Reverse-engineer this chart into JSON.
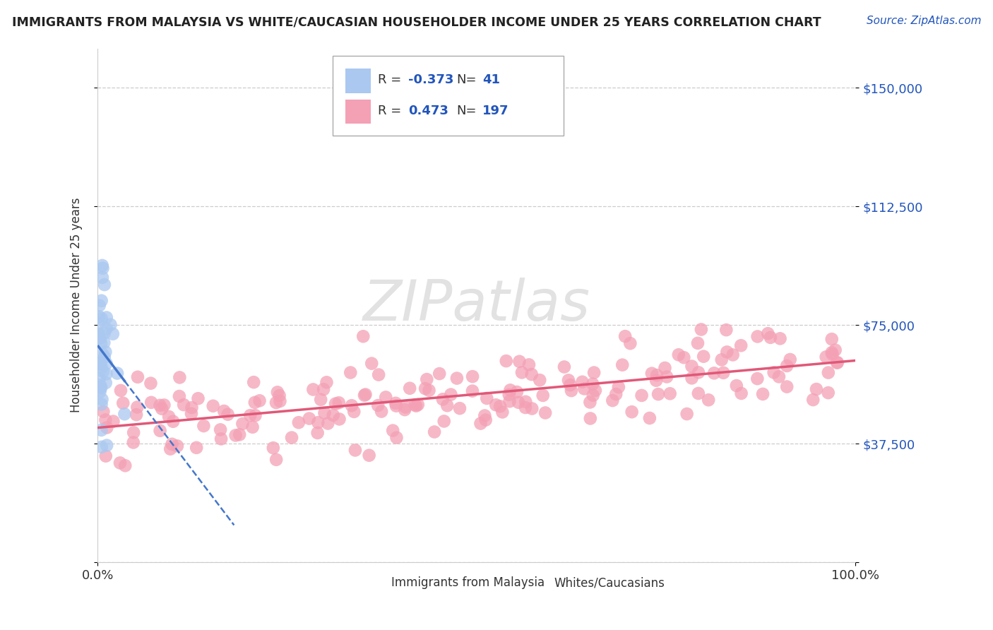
{
  "title": "IMMIGRANTS FROM MALAYSIA VS WHITE/CAUCASIAN HOUSEHOLDER INCOME UNDER 25 YEARS CORRELATION CHART",
  "source": "Source: ZipAtlas.com",
  "ylabel": "Householder Income Under 25 years",
  "xlim": [
    0,
    1.0
  ],
  "ylim": [
    0,
    162500
  ],
  "yticks": [
    0,
    37500,
    75000,
    112500,
    150000
  ],
  "ytick_labels": [
    "",
    "$37,500",
    "$75,000",
    "$112,500",
    "$150,000"
  ],
  "bg_color": "#ffffff",
  "grid_color": "#cccccc",
  "blue_color": "#aac8f0",
  "blue_line_color": "#4477cc",
  "pink_color": "#f4a0b5",
  "pink_line_color": "#e05878",
  "legend_R1": "-0.373",
  "legend_N1": "41",
  "legend_R2": "0.473",
  "legend_N2": "197"
}
